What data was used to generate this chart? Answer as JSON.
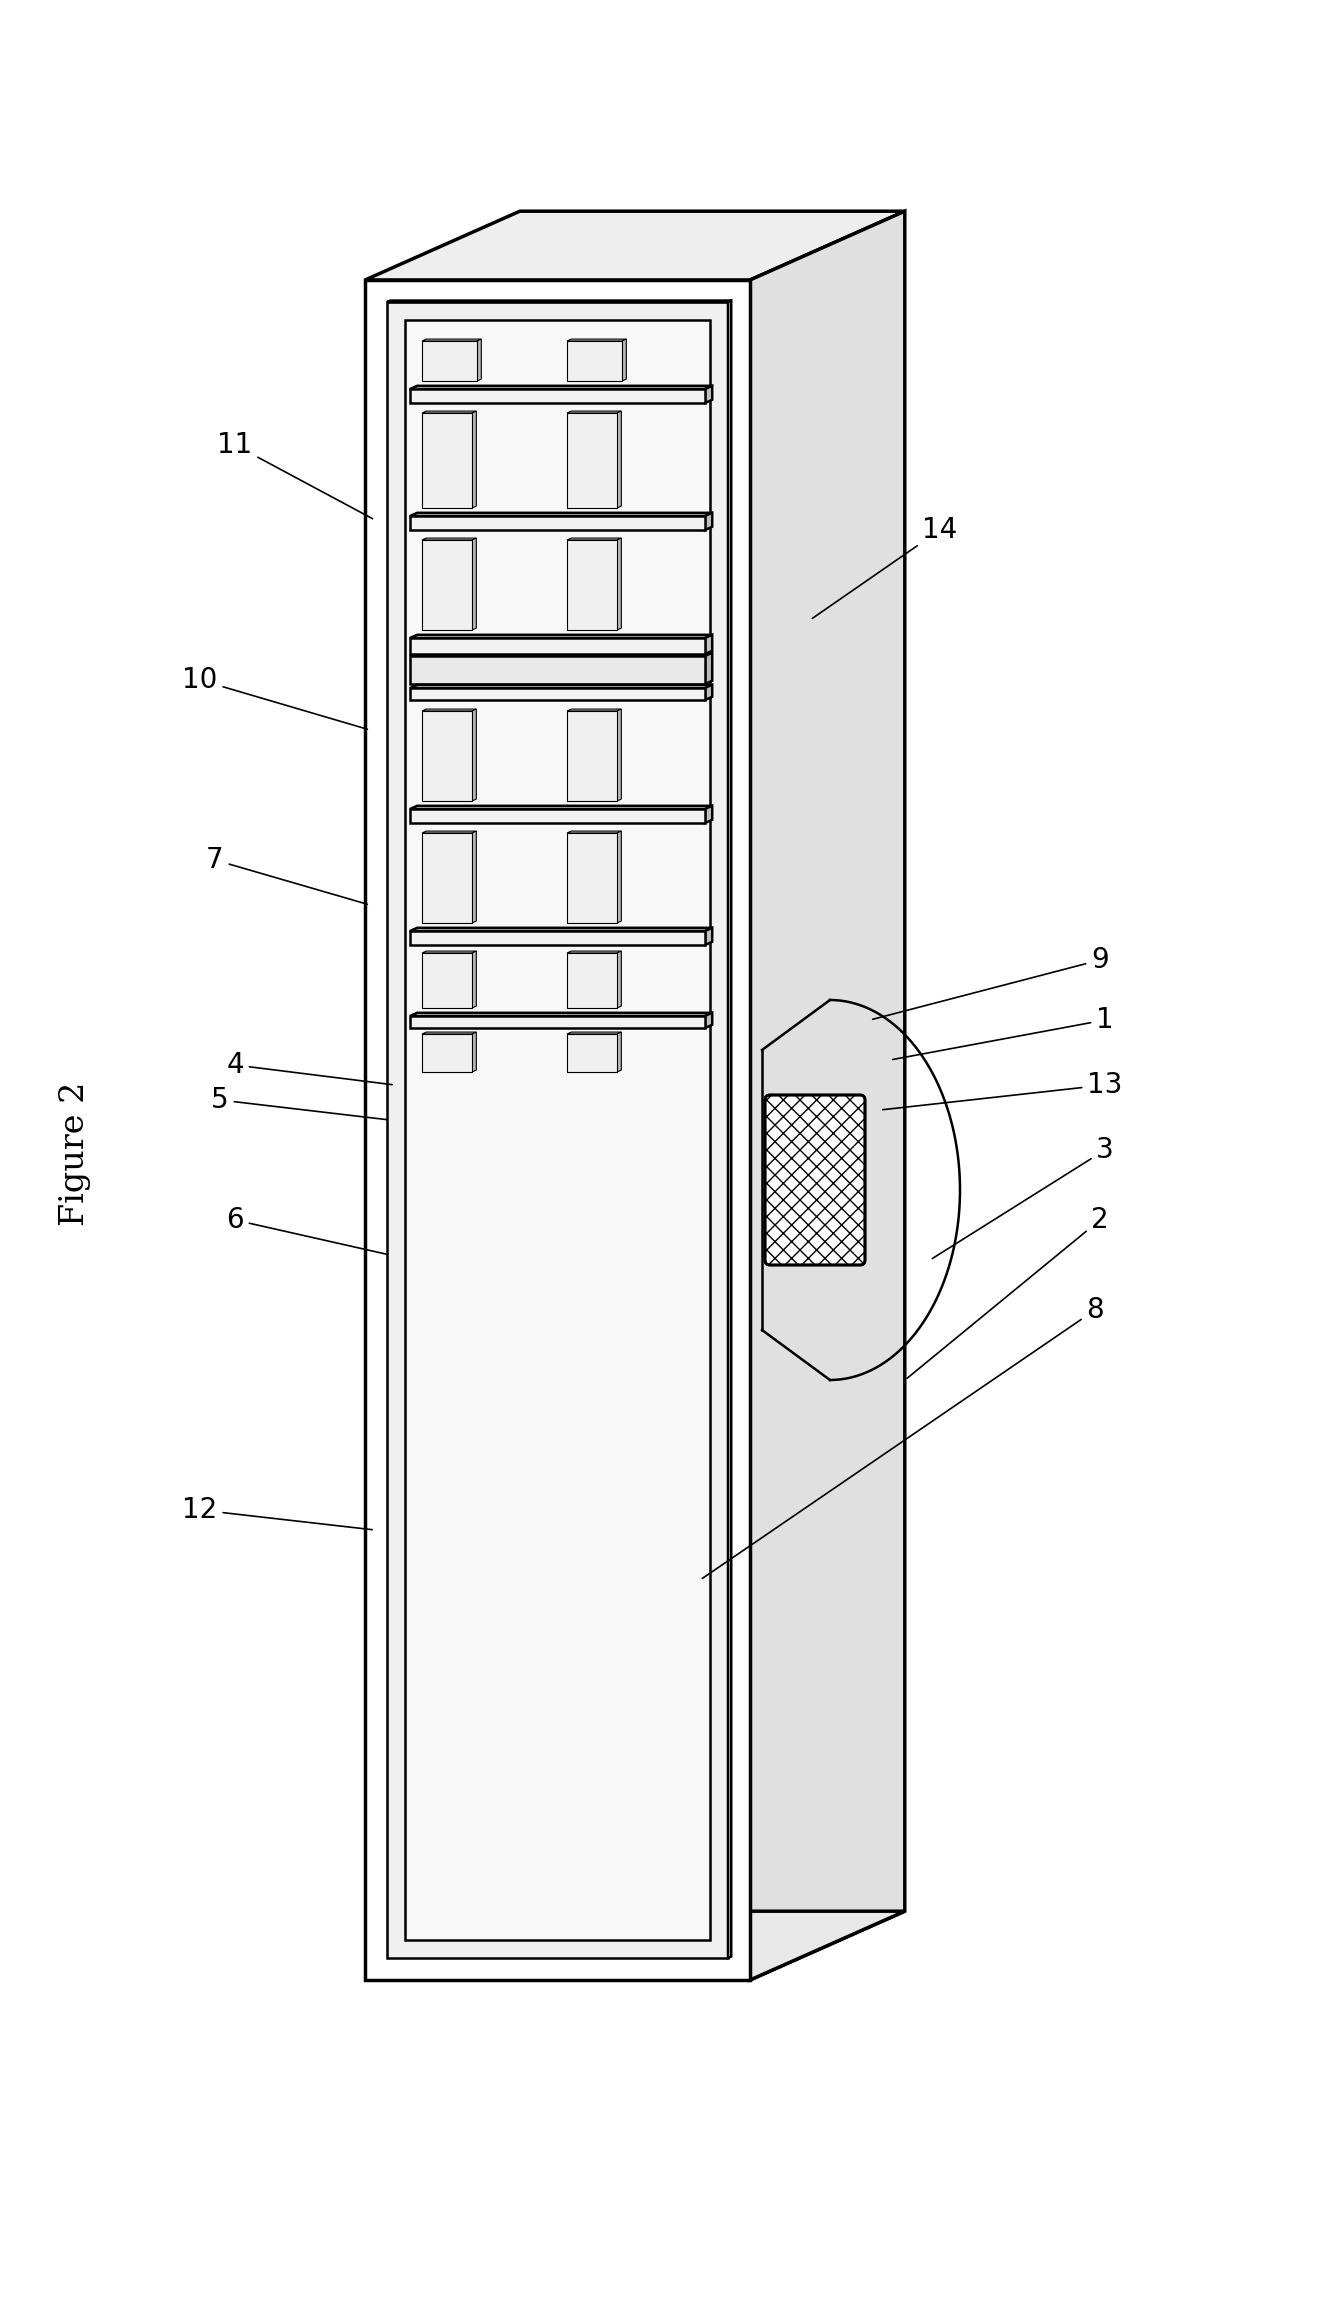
{
  "title": "Figure 2",
  "fig_width": 13.27,
  "fig_height": 23.08,
  "bg_color": "#ffffff",
  "line_color": "#000000",
  "lw": 1.8,
  "tlw": 2.5,
  "chip_fill": "#f0f0f0",
  "chip_top_fill": "#cccccc",
  "chip_right_fill": "#b0b0b0",
  "slab_fill": "#f5f5f5",
  "slab_top_fill": "#d8d8d8",
  "slab_right_fill": "#c0c0c0",
  "box_front_fill": "#ffffff",
  "box_top_fill": "#eeeeee",
  "box_right_fill": "#e0e0e0",
  "panel_fill": "#f8f8f8",
  "panel_top_fill": "#e0e0e0",
  "panel_right_fill": "#d0d0d0",
  "sep_fill": "#e0e0e0",
  "sep_top_fill": "#c8c8c8",
  "sep_right_fill": "#b8b8b8"
}
